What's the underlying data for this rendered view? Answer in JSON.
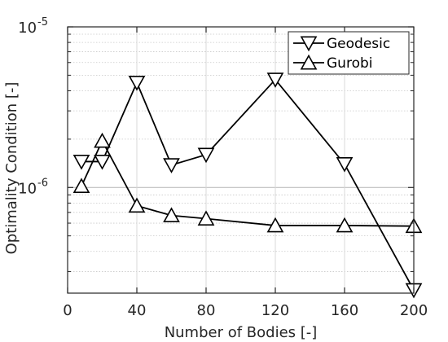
{
  "chart_data": {
    "type": "line",
    "xlabel": "Number of Bodies [-]",
    "ylabel": "Optimality Condition [-]",
    "xlim": [
      0,
      200
    ],
    "ylim": [
      2.2e-07,
      1e-05
    ],
    "yscale": "log",
    "xticks": [
      0,
      40,
      80,
      120,
      160,
      200
    ],
    "xtick_labels": [
      "0",
      "40",
      "80",
      "120",
      "160",
      "200"
    ],
    "yticks": [
      {
        "value": 1e-06,
        "base": "10",
        "exp": "-6"
      },
      {
        "value": 1e-05,
        "base": "10",
        "exp": "-5"
      }
    ],
    "grid": true,
    "minor_grid": true,
    "legend_position": "top-right",
    "series": [
      {
        "name": "Geodesic",
        "marker": "triangle-down",
        "color": "#000000",
        "x": [
          8,
          20,
          40,
          60,
          80,
          120,
          160,
          200
        ],
        "y": [
          1.45e-06,
          1.45e-06,
          4.5e-06,
          1.38e-06,
          1.6e-06,
          4.7e-06,
          1.4e-06,
          2.3e-07
        ]
      },
      {
        "name": "Gurobi",
        "marker": "triangle-up",
        "color": "#000000",
        "x": [
          8,
          20,
          40,
          60,
          80,
          120,
          160,
          200
        ],
        "y": [
          1.02e-06,
          1.95e-06,
          7.7e-07,
          6.7e-07,
          6.4e-07,
          5.8e-07,
          5.8e-07,
          5.75e-07
        ]
      }
    ]
  }
}
